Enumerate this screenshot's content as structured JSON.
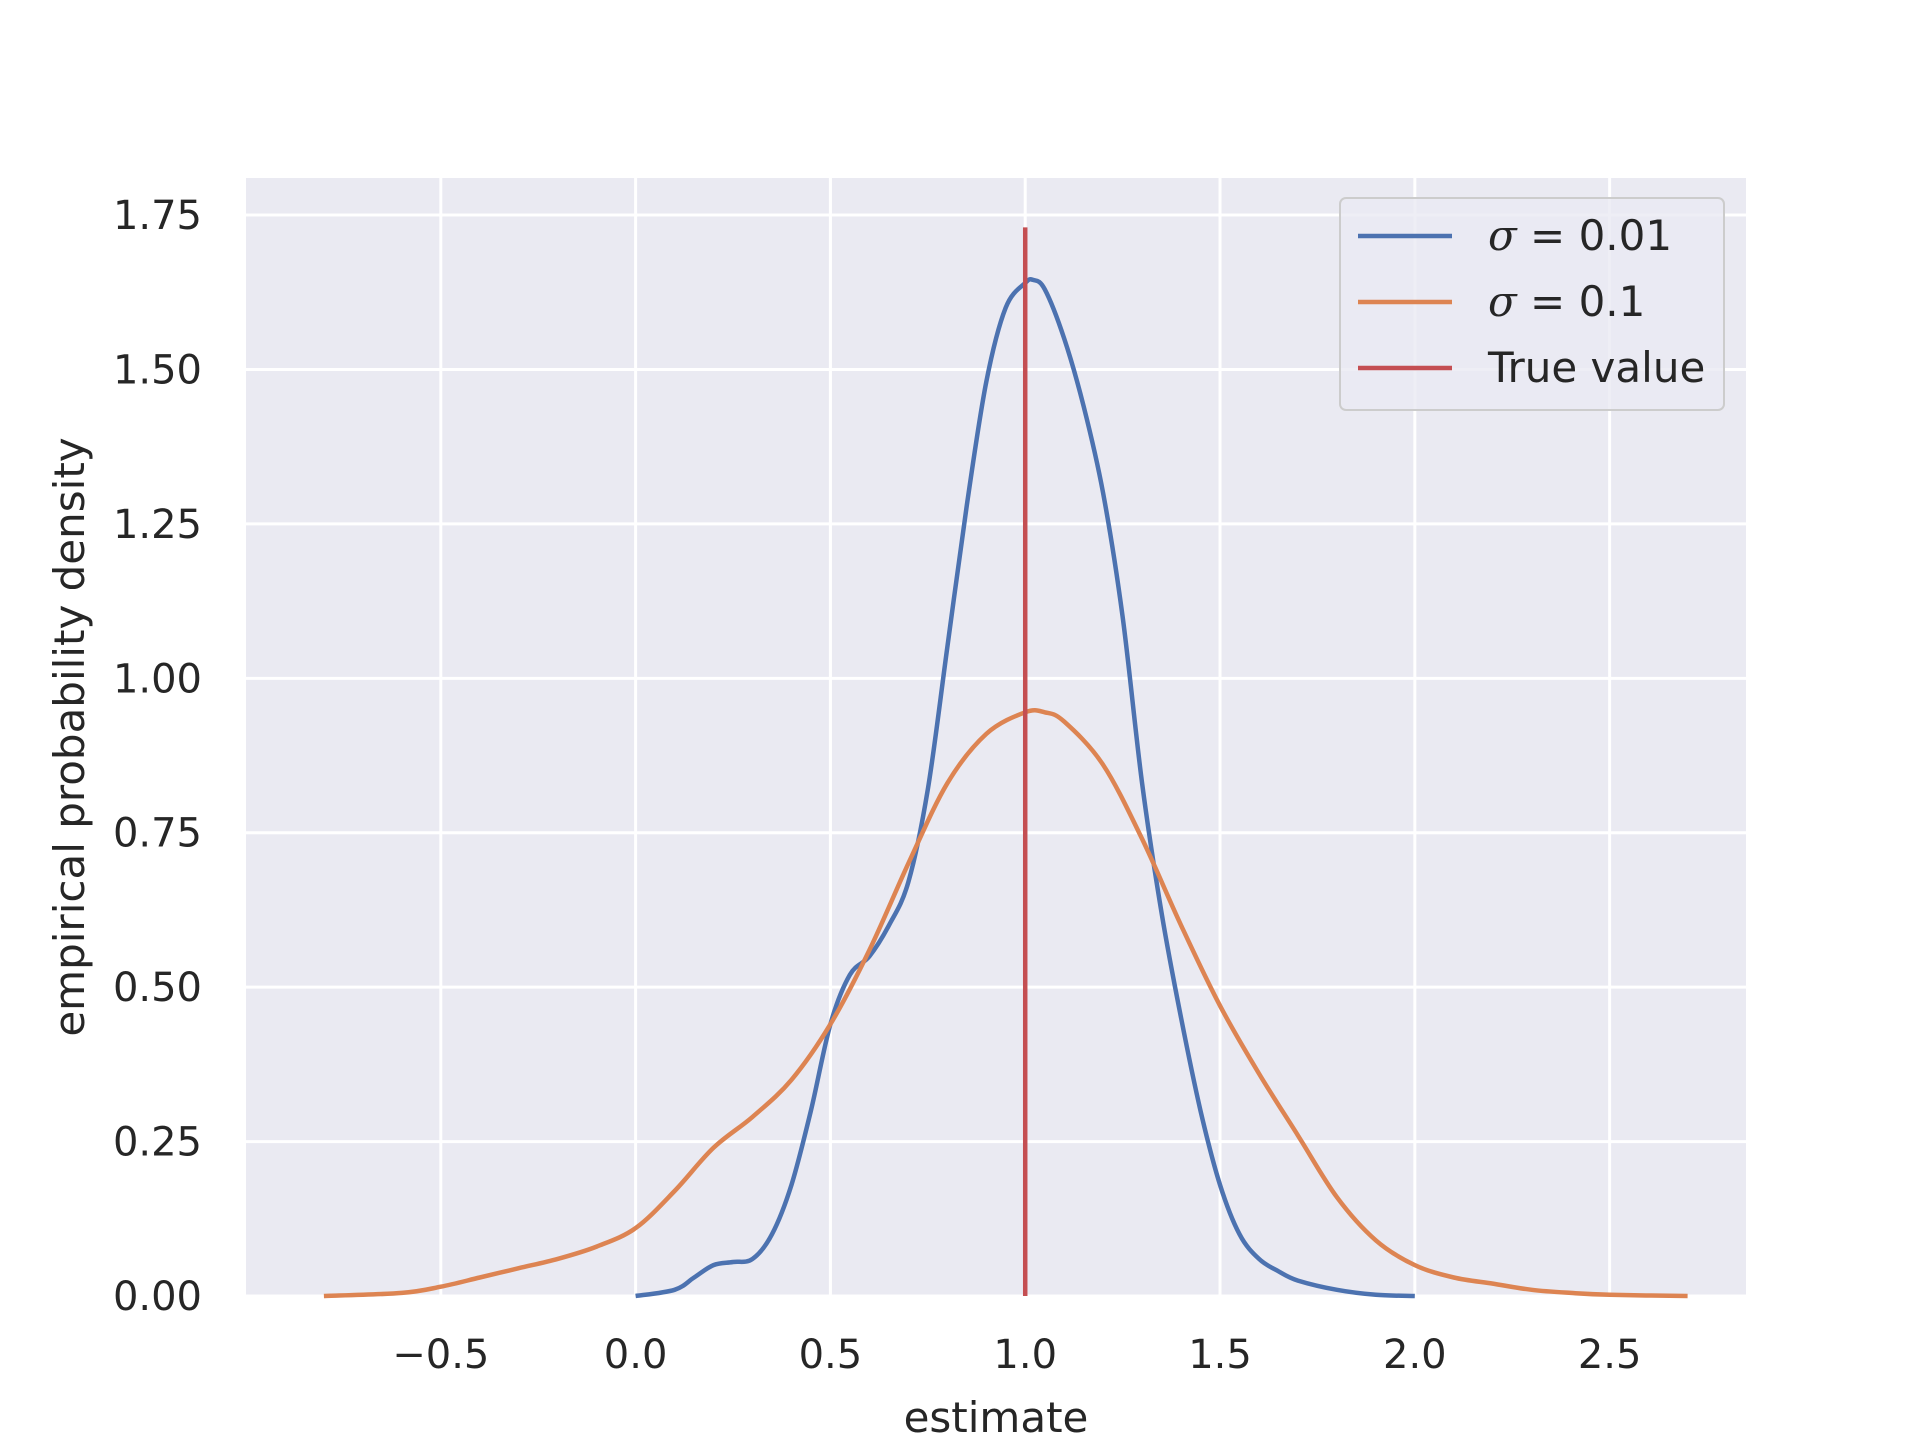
{
  "chart_data": {
    "type": "line",
    "title": "",
    "xlabel": "estimate",
    "ylabel": "empirical probability density",
    "xlim": [
      -1.0,
      2.85
    ],
    "ylim": [
      0.0,
      1.81
    ],
    "xticks": [
      -0.5,
      0.0,
      0.5,
      1.0,
      1.5,
      2.0,
      2.5
    ],
    "xtick_labels": [
      "−0.5",
      "0.0",
      "0.5",
      "1.0",
      "1.5",
      "2.0",
      "2.5"
    ],
    "yticks": [
      0.0,
      0.25,
      0.5,
      0.75,
      1.0,
      1.25,
      1.5,
      1.75
    ],
    "ytick_labels": [
      "0.00",
      "0.25",
      "0.50",
      "0.75",
      "1.00",
      "1.25",
      "1.50",
      "1.75"
    ],
    "grid": true,
    "background": "#eaeaf2",
    "legend_position": "top-right",
    "series": [
      {
        "name": "σ = 0.01",
        "legend_symbol": "σ",
        "legend_rest": " = 0.01",
        "color": "#4c72b0",
        "x": [
          0.0,
          0.1,
          0.15,
          0.2,
          0.25,
          0.3,
          0.35,
          0.4,
          0.45,
          0.5,
          0.55,
          0.6,
          0.65,
          0.7,
          0.75,
          0.8,
          0.85,
          0.9,
          0.95,
          1.0,
          1.02,
          1.05,
          1.1,
          1.15,
          1.2,
          1.25,
          1.3,
          1.35,
          1.4,
          1.45,
          1.5,
          1.55,
          1.6,
          1.65,
          1.7,
          1.8,
          1.9,
          2.0
        ],
        "y": [
          0.0,
          0.01,
          0.03,
          0.05,
          0.055,
          0.06,
          0.1,
          0.18,
          0.3,
          0.44,
          0.52,
          0.55,
          0.6,
          0.67,
          0.82,
          1.05,
          1.28,
          1.48,
          1.6,
          1.64,
          1.645,
          1.63,
          1.55,
          1.44,
          1.3,
          1.1,
          0.83,
          0.62,
          0.45,
          0.3,
          0.18,
          0.1,
          0.06,
          0.04,
          0.025,
          0.01,
          0.002,
          0.0
        ]
      },
      {
        "name": "σ = 0.1",
        "legend_symbol": "σ",
        "legend_rest": " = 0.1",
        "color": "#dd8452",
        "x": [
          -0.8,
          -0.6,
          -0.5,
          -0.4,
          -0.3,
          -0.2,
          -0.1,
          0.0,
          0.1,
          0.2,
          0.3,
          0.4,
          0.5,
          0.6,
          0.7,
          0.8,
          0.9,
          1.0,
          1.05,
          1.1,
          1.2,
          1.3,
          1.4,
          1.5,
          1.6,
          1.7,
          1.8,
          1.9,
          2.0,
          2.1,
          2.2,
          2.3,
          2.4,
          2.5,
          2.7
        ],
        "y": [
          0.0,
          0.005,
          0.015,
          0.03,
          0.045,
          0.06,
          0.08,
          0.11,
          0.17,
          0.24,
          0.29,
          0.35,
          0.44,
          0.56,
          0.7,
          0.83,
          0.91,
          0.945,
          0.945,
          0.93,
          0.86,
          0.74,
          0.6,
          0.47,
          0.36,
          0.26,
          0.16,
          0.09,
          0.05,
          0.03,
          0.02,
          0.01,
          0.005,
          0.002,
          0.0
        ]
      },
      {
        "name": "True value",
        "legend_symbol": "",
        "legend_rest": "True value",
        "color": "#c44e52",
        "x": [
          1.0,
          1.0
        ],
        "y": [
          0.0,
          1.73
        ]
      }
    ]
  }
}
